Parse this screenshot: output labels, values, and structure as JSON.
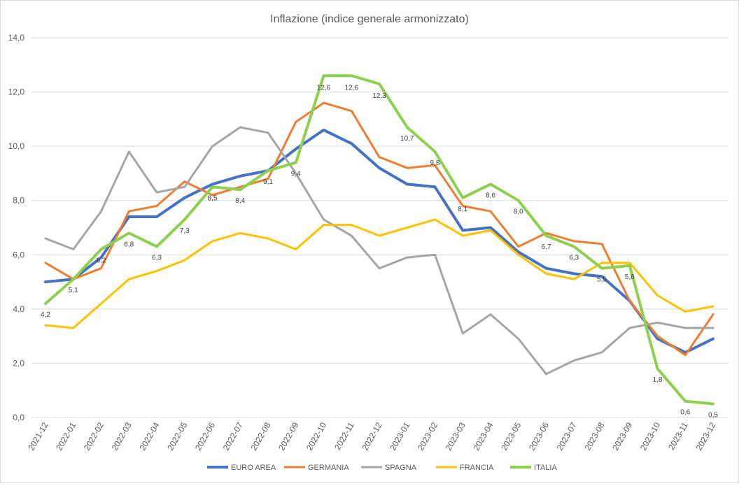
{
  "chart_data": {
    "type": "line",
    "title": "Inflazione (indice generale armonizzato)",
    "xlabel": "",
    "ylabel": "",
    "ylim": [
      0,
      14
    ],
    "yticks": [
      "0,0",
      "2,0",
      "4,0",
      "6,0",
      "8,0",
      "10,0",
      "12,0",
      "14,0"
    ],
    "grid": true,
    "legend_position": "bottom",
    "categories": [
      "2021-12",
      "2022-01",
      "2022-02",
      "2022-03",
      "2022-04",
      "2022-05",
      "2022-06",
      "2022-07",
      "2022-08",
      "2022-09",
      "2022-10",
      "2022-11",
      "2022-12",
      "2023-01",
      "2023-02",
      "2023-03",
      "2023-04",
      "2023-05",
      "2023-06",
      "2023-07",
      "2023-08",
      "2023-09",
      "2023-10",
      "2023-11",
      "2023-12"
    ],
    "series": [
      {
        "name": "EURO AREA",
        "color": "#4472C4",
        "width": 4,
        "values": [
          5.0,
          5.1,
          5.9,
          7.4,
          7.4,
          8.1,
          8.6,
          8.9,
          9.1,
          9.9,
          10.6,
          10.1,
          9.2,
          8.6,
          8.5,
          6.9,
          7.0,
          6.1,
          5.5,
          5.3,
          5.2,
          4.3,
          2.9,
          2.4,
          2.9
        ]
      },
      {
        "name": "GERMANIA",
        "color": "#ED7D31",
        "width": 3,
        "values": [
          5.7,
          5.1,
          5.5,
          7.6,
          7.8,
          8.7,
          8.2,
          8.5,
          8.8,
          10.9,
          11.6,
          11.3,
          9.6,
          9.2,
          9.3,
          7.8,
          7.6,
          6.3,
          6.8,
          6.5,
          6.4,
          4.3,
          3.0,
          2.3,
          3.8
        ]
      },
      {
        "name": "SPAGNA",
        "color": "#A5A5A5",
        "width": 3,
        "values": [
          6.6,
          6.2,
          7.6,
          9.8,
          8.3,
          8.5,
          10.0,
          10.7,
          10.5,
          9.0,
          7.3,
          6.7,
          5.5,
          5.9,
          6.0,
          3.1,
          3.8,
          2.9,
          1.6,
          2.1,
          2.4,
          3.3,
          3.5,
          3.3,
          3.3
        ]
      },
      {
        "name": "FRANCIA",
        "color": "#FFC000",
        "width": 3,
        "values": [
          3.4,
          3.3,
          4.2,
          5.1,
          5.4,
          5.8,
          6.5,
          6.8,
          6.6,
          6.2,
          7.1,
          7.1,
          6.7,
          7.0,
          7.3,
          6.7,
          6.9,
          6.0,
          5.3,
          5.1,
          5.7,
          5.7,
          4.5,
          3.9,
          4.1
        ]
      },
      {
        "name": "ITALIA",
        "color": "#8CD04E",
        "width": 4,
        "values": [
          4.2,
          5.1,
          6.2,
          6.8,
          6.3,
          7.3,
          8.5,
          8.4,
          9.1,
          9.4,
          12.6,
          12.6,
          12.3,
          10.7,
          9.8,
          8.1,
          8.6,
          8.0,
          6.7,
          6.3,
          5.5,
          5.6,
          1.8,
          0.6,
          0.5
        ],
        "data_labels": [
          "4,2",
          "5,1",
          "6,2",
          "6,8",
          "6,3",
          "7,3",
          "8,5",
          "8,4",
          "9,1",
          "9,4",
          "12,6",
          "12,6",
          "12,3",
          "10,7",
          "9,8",
          "8,1",
          "8,6",
          "8,0",
          "6,7",
          "6,3",
          "5,5",
          "5,6",
          "1,8",
          "0,6",
          "0,5"
        ]
      }
    ]
  }
}
